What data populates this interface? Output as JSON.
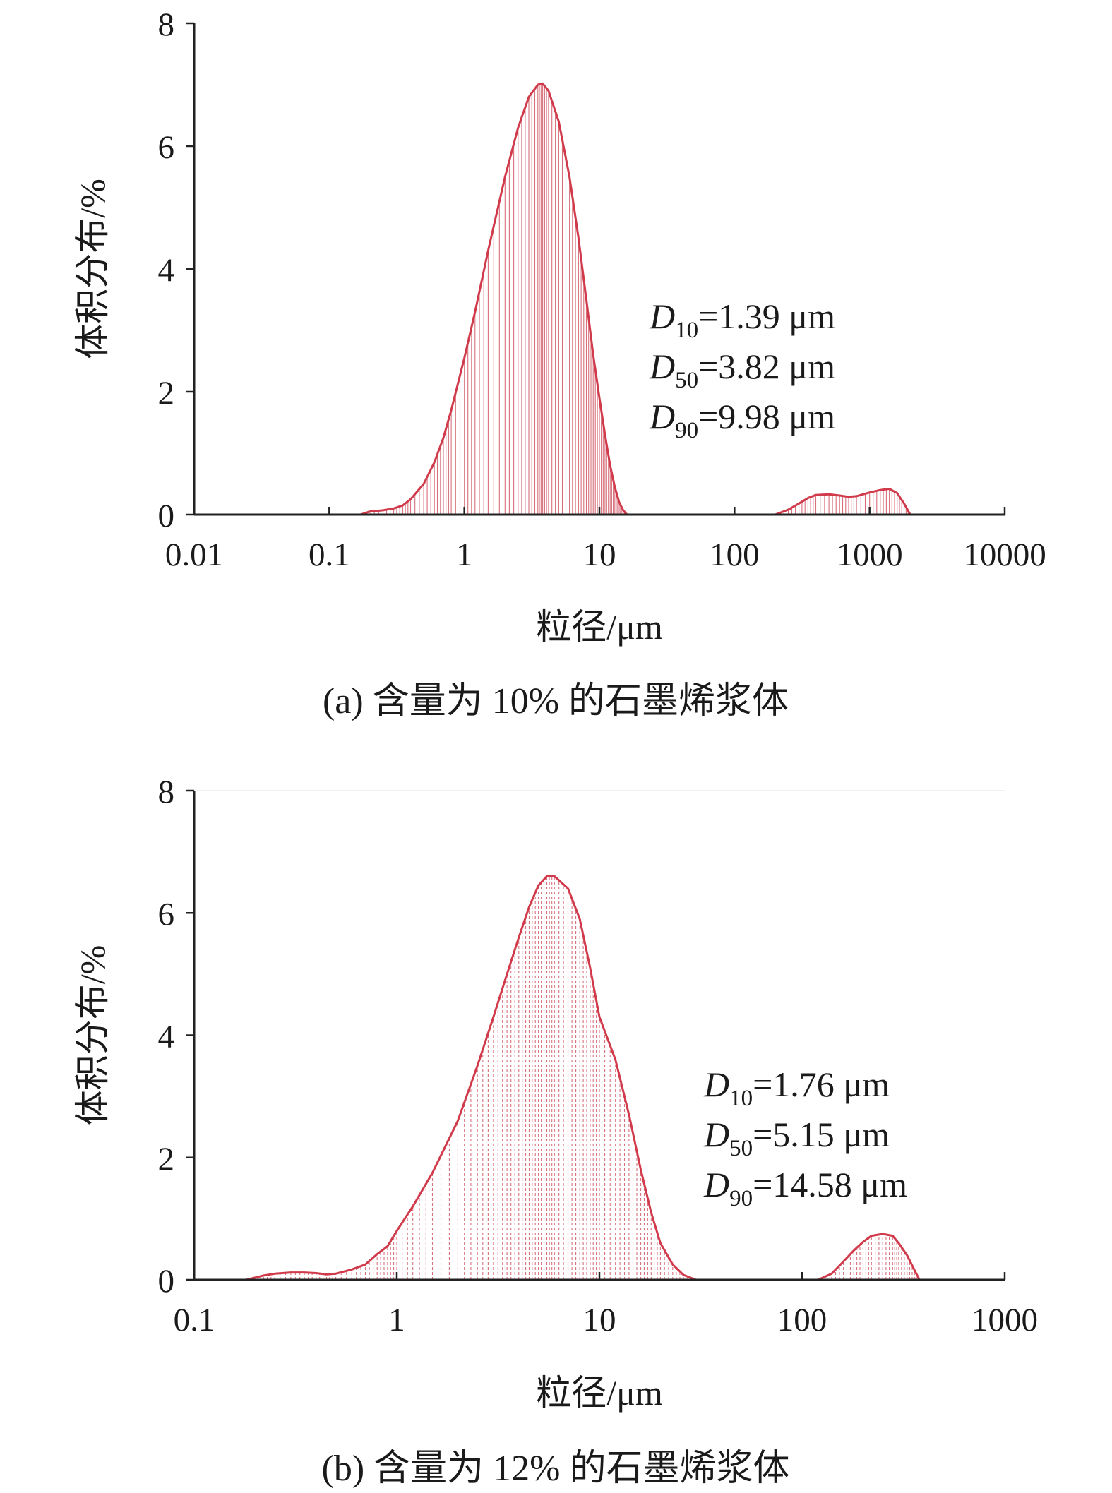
{
  "colors": {
    "curve": "#d03a4a",
    "hatch": "#d8707c",
    "axis": "#222222"
  },
  "chart_data": [
    {
      "id": "a",
      "type": "area",
      "x_scale": "log",
      "xlim": [
        0.01,
        10000
      ],
      "ylim": [
        0,
        8
      ],
      "xticks": [
        0.01,
        0.1,
        1,
        10,
        100,
        1000,
        10000
      ],
      "xtick_labels": [
        "0.01",
        "0.1",
        "1",
        "10",
        "100",
        "1000",
        "10000"
      ],
      "yticks": [
        0,
        2,
        4,
        6,
        8
      ],
      "ytick_labels": [
        "0",
        "2",
        "4",
        "6",
        "8"
      ],
      "xlabel": "粒径/μm",
      "ylabel": "体积分布/%",
      "caption": "(a) 含量为 10% 的石墨烯浆体",
      "annotations": [
        {
          "sym": "D",
          "sub": "10",
          "val": "=1.39 μm"
        },
        {
          "sym": "D",
          "sub": "50",
          "val": "=3.82 μm"
        },
        {
          "sym": "D",
          "sub": "90",
          "val": "=9.98 μm"
        }
      ],
      "segments": [
        [
          [
            0.17,
            0
          ],
          [
            0.2,
            0.05
          ],
          [
            0.25,
            0.07
          ],
          [
            0.3,
            0.1
          ],
          [
            0.35,
            0.15
          ],
          [
            0.4,
            0.25
          ],
          [
            0.5,
            0.5
          ],
          [
            0.6,
            0.85
          ],
          [
            0.7,
            1.25
          ],
          [
            0.8,
            1.7
          ],
          [
            1,
            2.55
          ],
          [
            1.2,
            3.3
          ],
          [
            1.5,
            4.3
          ],
          [
            2,
            5.5
          ],
          [
            2.5,
            6.3
          ],
          [
            3,
            6.8
          ],
          [
            3.5,
            7.0
          ],
          [
            3.8,
            7.02
          ],
          [
            4.2,
            6.9
          ],
          [
            5,
            6.4
          ],
          [
            6,
            5.5
          ],
          [
            7,
            4.5
          ],
          [
            8,
            3.5
          ],
          [
            9,
            2.6
          ],
          [
            10,
            1.9
          ],
          [
            11,
            1.3
          ],
          [
            12,
            0.8
          ],
          [
            13,
            0.45
          ],
          [
            14,
            0.2
          ],
          [
            15,
            0.07
          ],
          [
            16,
            0
          ]
        ],
        [
          [
            200,
            0
          ],
          [
            250,
            0.08
          ],
          [
            300,
            0.18
          ],
          [
            350,
            0.27
          ],
          [
            400,
            0.32
          ],
          [
            500,
            0.33
          ],
          [
            600,
            0.31
          ],
          [
            700,
            0.29
          ],
          [
            800,
            0.3
          ],
          [
            1000,
            0.36
          ],
          [
            1200,
            0.4
          ],
          [
            1400,
            0.42
          ],
          [
            1600,
            0.35
          ],
          [
            1800,
            0.18
          ],
          [
            2000,
            0
          ]
        ]
      ]
    },
    {
      "id": "b",
      "type": "area",
      "x_scale": "log",
      "xlim": [
        0.1,
        1000
      ],
      "ylim": [
        0,
        8
      ],
      "xticks": [
        0.1,
        1,
        10,
        100,
        1000
      ],
      "xtick_labels": [
        "0.1",
        "1",
        "10",
        "100",
        "1000"
      ],
      "yticks": [
        0,
        2,
        4,
        6,
        8
      ],
      "ytick_labels": [
        "0",
        "2",
        "4",
        "6",
        "8"
      ],
      "xlabel": "粒径/μm",
      "ylabel": "体积分布/%",
      "caption": "(b) 含量为 12% 的石墨烯浆体",
      "annotations": [
        {
          "sym": "D",
          "sub": "10",
          "val": "=1.76 μm"
        },
        {
          "sym": "D",
          "sub": "50",
          "val": "=5.15 μm"
        },
        {
          "sym": "D",
          "sub": "90",
          "val": "=14.58 μm"
        }
      ],
      "segments": [
        [
          [
            0.18,
            0
          ],
          [
            0.22,
            0.07
          ],
          [
            0.25,
            0.1
          ],
          [
            0.3,
            0.12
          ],
          [
            0.35,
            0.12
          ],
          [
            0.4,
            0.11
          ],
          [
            0.45,
            0.09
          ],
          [
            0.5,
            0.1
          ],
          [
            0.6,
            0.17
          ],
          [
            0.7,
            0.25
          ],
          [
            0.8,
            0.42
          ],
          [
            0.9,
            0.55
          ],
          [
            1,
            0.8
          ],
          [
            1.2,
            1.2
          ],
          [
            1.5,
            1.75
          ],
          [
            2,
            2.6
          ],
          [
            2.5,
            3.5
          ],
          [
            3,
            4.3
          ],
          [
            3.5,
            5.0
          ],
          [
            4,
            5.6
          ],
          [
            4.5,
            6.1
          ],
          [
            5,
            6.45
          ],
          [
            5.5,
            6.6
          ],
          [
            6,
            6.6
          ],
          [
            7,
            6.4
          ],
          [
            8,
            5.9
          ],
          [
            9,
            5.1
          ],
          [
            10,
            4.3
          ],
          [
            12,
            3.6
          ],
          [
            14,
            2.7
          ],
          [
            16,
            1.8
          ],
          [
            18,
            1.1
          ],
          [
            20,
            0.6
          ],
          [
            23,
            0.25
          ],
          [
            26,
            0.08
          ],
          [
            30,
            0
          ]
        ],
        [
          [
            120,
            0
          ],
          [
            140,
            0.1
          ],
          [
            160,
            0.3
          ],
          [
            180,
            0.48
          ],
          [
            200,
            0.62
          ],
          [
            220,
            0.72
          ],
          [
            250,
            0.75
          ],
          [
            280,
            0.72
          ],
          [
            300,
            0.6
          ],
          [
            330,
            0.4
          ],
          [
            360,
            0.15
          ],
          [
            380,
            0
          ]
        ]
      ]
    }
  ]
}
